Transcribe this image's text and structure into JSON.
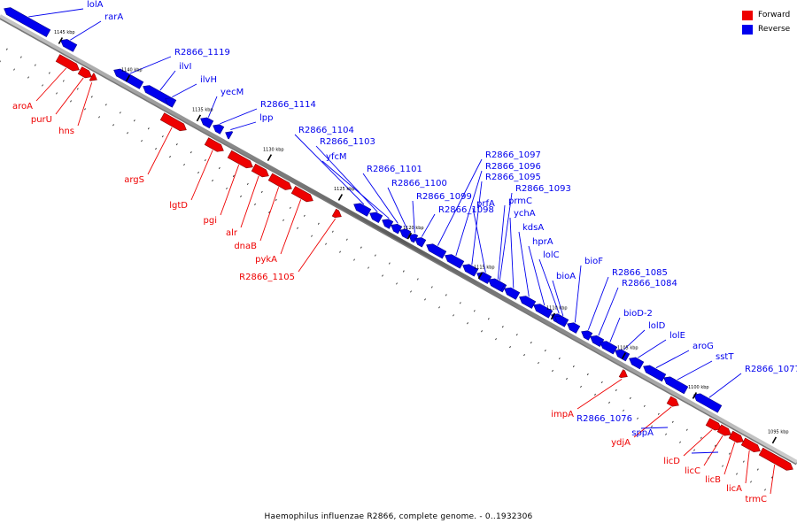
{
  "legend": {
    "forward": {
      "label": "Forward",
      "color": "#ee0000"
    },
    "reverse": {
      "label": "Reverse",
      "color": "#0000ee"
    }
  },
  "caption": "Haemophilus influenzae R2866, complete genome. - 0..1932306",
  "ticks": [
    "1145 kbp",
    "1140 kbp",
    "1135 kbp",
    "1130 kbp",
    "1125 kbp",
    "1120 kbp",
    "1115 kbp",
    "1110 kbp",
    "1105 kbp",
    "1100 kbp",
    "1095 kbp"
  ],
  "genes": {
    "reverse": [
      "lolA",
      "rarA",
      "R2866_1119",
      "ilvI",
      "ilvH",
      "yecM",
      "R2866_1114",
      "lpp",
      "R2866_1104",
      "R2866_1103",
      "yfcM",
      "R2866_1101",
      "R2866_1100",
      "R2866_1099",
      "R2866_1098",
      "R2866_1097",
      "R2866_1096",
      "R2866_1095",
      "prfA",
      "R2866_1093",
      "prmC",
      "ychA",
      "kdsA",
      "hprA",
      "lolC",
      "bioA",
      "bioF",
      "R2866_1085",
      "R2866_1084",
      "bioD-2",
      "lolD",
      "lolE",
      "aroG",
      "sstT",
      "R2866_1077",
      "R2866_1076",
      "sppA"
    ],
    "forward": [
      "aroA",
      "purU",
      "hns",
      "argS",
      "lgtD",
      "pgi",
      "alr",
      "dnaB",
      "pykA",
      "R2866_1105",
      "impA",
      "ydjA",
      "licD",
      "licC",
      "licB",
      "licA",
      "trmC"
    ]
  }
}
